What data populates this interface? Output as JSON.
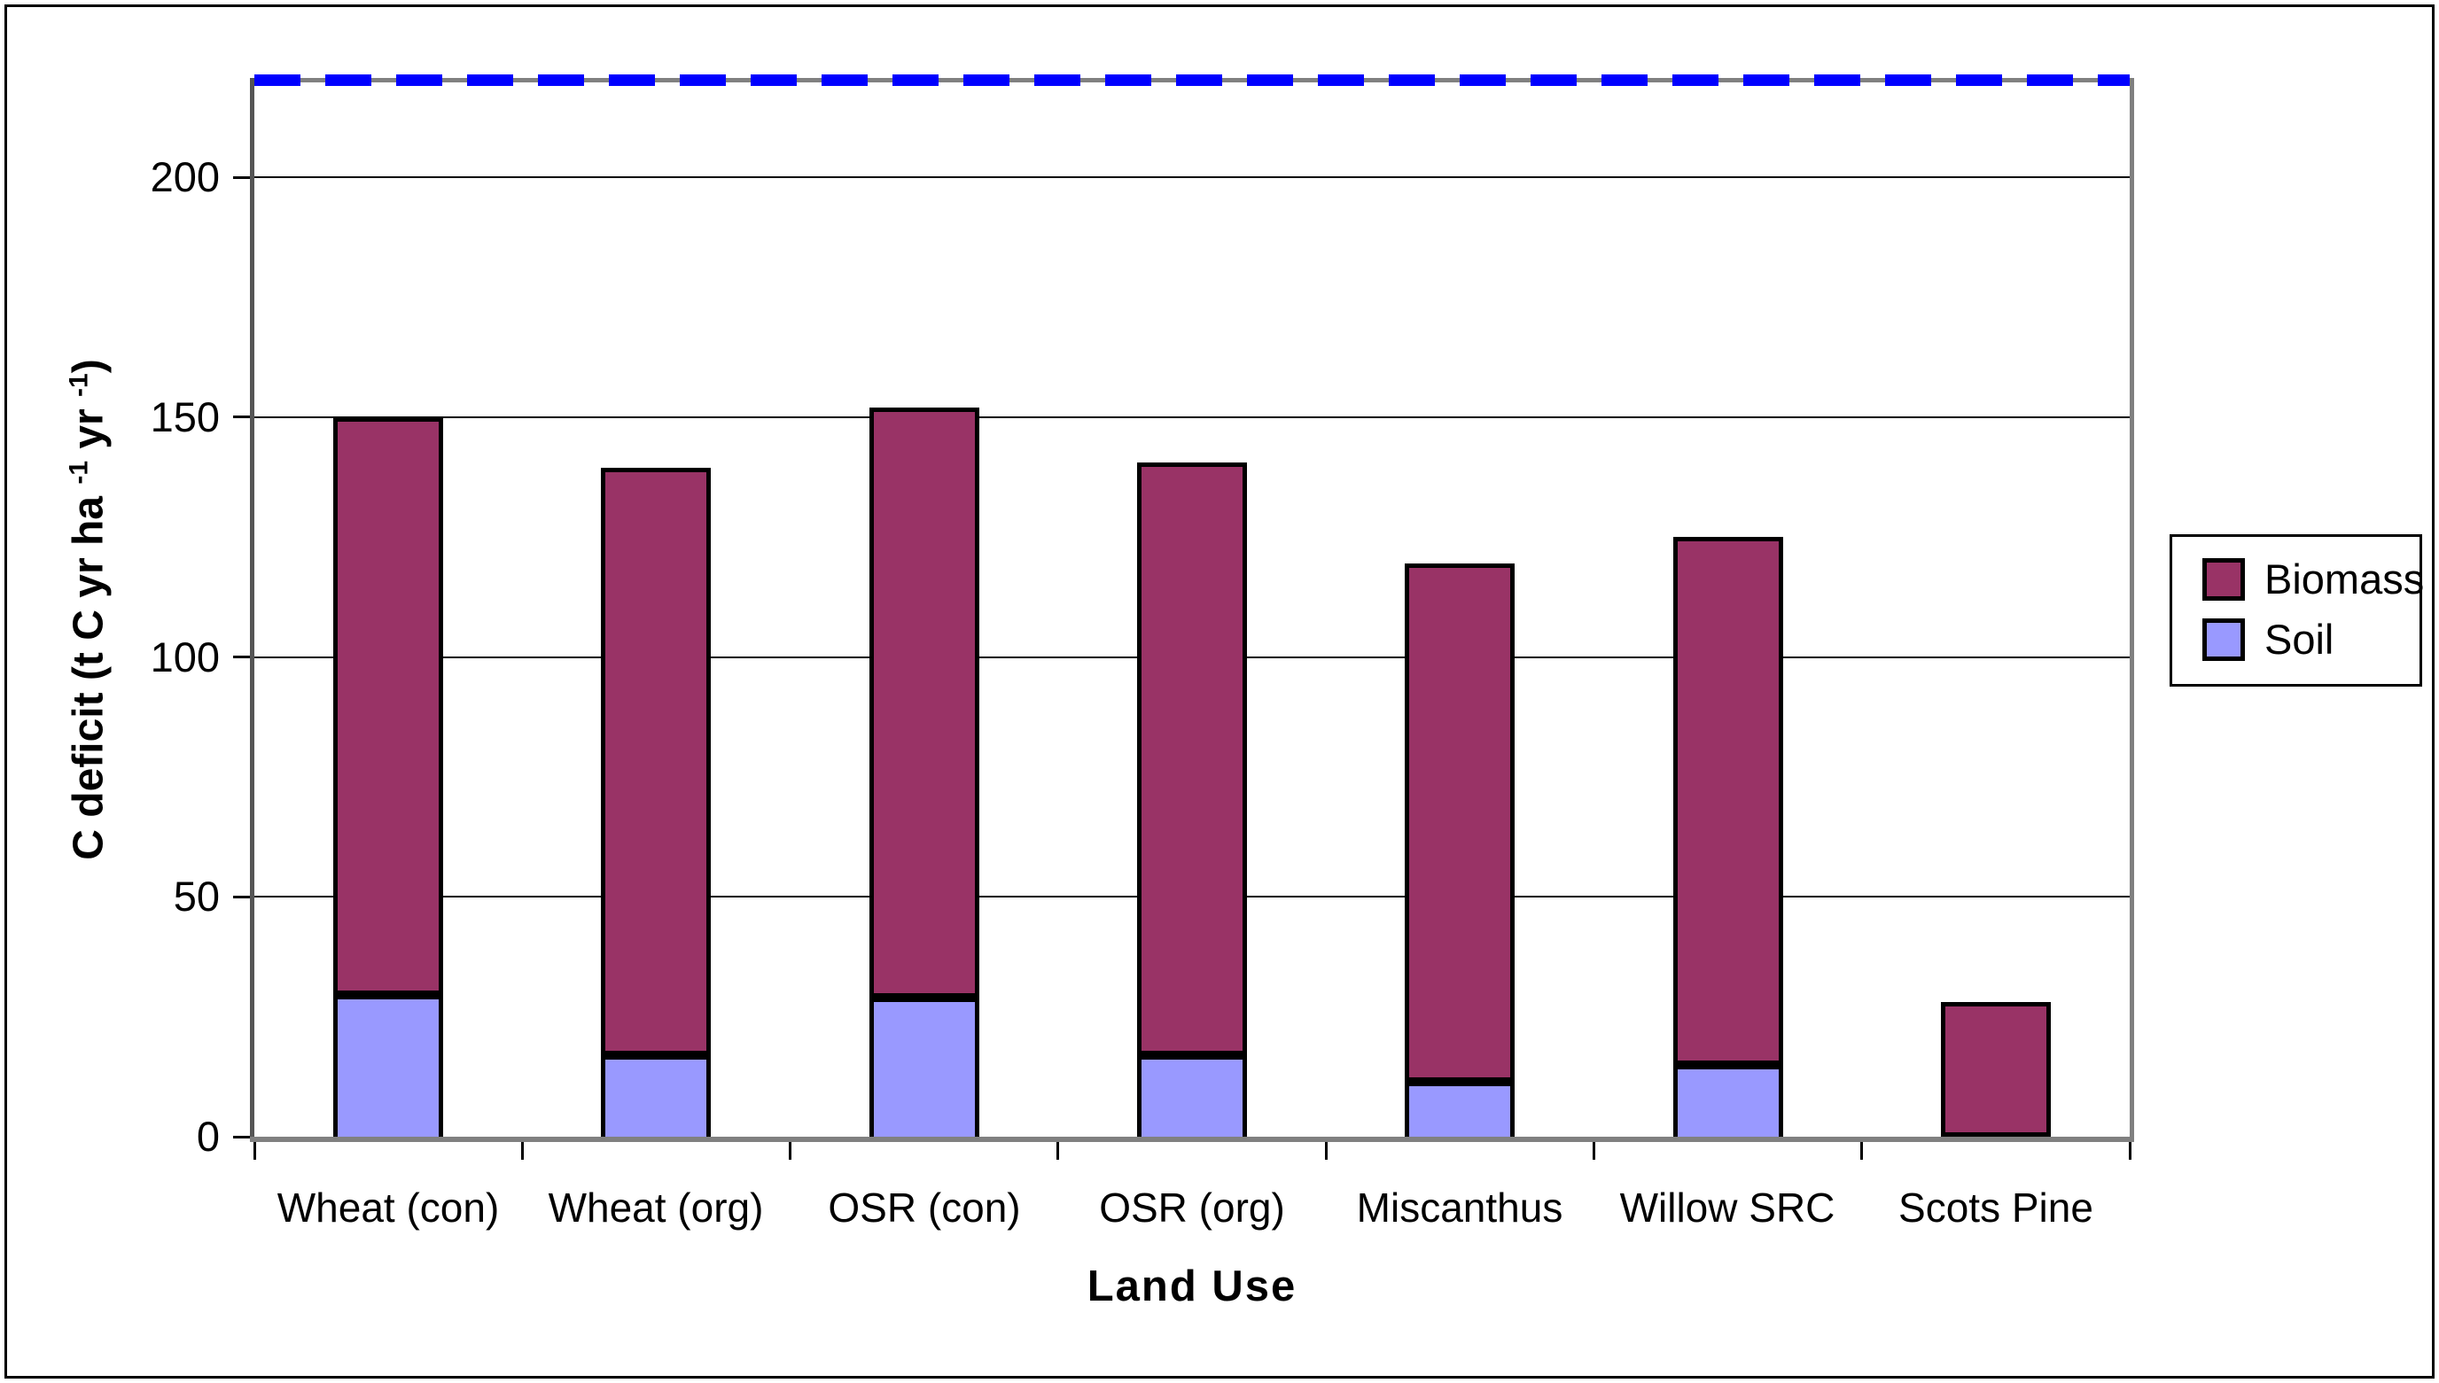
{
  "chart_data": {
    "type": "bar",
    "stacked": true,
    "title": "",
    "xlabel": "Land Use",
    "ylabel": "C deficit (t C yr ha-1 yr-1)",
    "ylabel_parts": [
      {
        "text": "C deficit  (t C yr ha "
      },
      {
        "text": "-1",
        "sup": true
      },
      {
        "text": " yr ",
        "sup": false
      },
      {
        "text": "-1",
        "sup": true
      },
      {
        "text": ")",
        "sup": false
      }
    ],
    "categories": [
      "Wheat (con)",
      "Wheat (org)",
      "OSR (con)",
      "OSR (org)",
      "Miscanthus",
      "Willow SRC",
      "Scots Pine"
    ],
    "series": [
      {
        "name": "Biomass",
        "color": "#993366",
        "values": [
          120.5,
          122.5,
          123.0,
          123.5,
          108.0,
          110.0,
          28.0
        ]
      },
      {
        "name": "Soil",
        "color": "#9999FF",
        "values": [
          29.5,
          17.0,
          29.0,
          17.0,
          11.5,
          15.0,
          0.0
        ]
      }
    ],
    "stack_order": [
      "Soil",
      "Biomass"
    ],
    "yticks": [
      0,
      50,
      100,
      150,
      200
    ],
    "ylim": [
      0,
      220
    ],
    "grid": true,
    "reference_line": {
      "value": 220,
      "color": "#0000FF",
      "style": "dashed"
    },
    "legend": {
      "position": "right",
      "items": [
        "Biomass",
        "Soil"
      ]
    }
  },
  "colors": {
    "plot_border": "#808080",
    "axis_line": "#555555",
    "gridline": "#000000",
    "bar_outline": "#000000",
    "background": "#FFFFFF"
  }
}
